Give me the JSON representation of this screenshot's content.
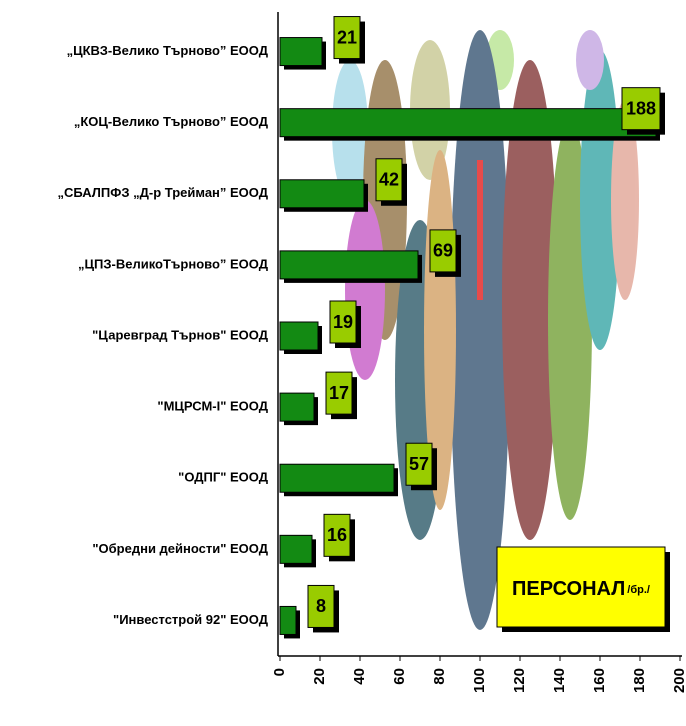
{
  "chart_data": {
    "type": "bar",
    "orientation": "horizontal",
    "title": "ПЕРСОНАЛ",
    "subtitle": "/бр./",
    "categories": [
      "„ЦКВЗ-Велико Търново” ЕООД",
      "„КОЦ-Велико Търново” ЕООД",
      "„СБАЛПФЗ „Д-р Трейман” ЕООД",
      "„ЦПЗ-ВеликоТърново” ЕООД",
      "\"Царевград Търнов\" ЕООД",
      "\"МЦРСМ-I\" ЕООД",
      "\"ОДПГ\" ЕООД",
      "\"Обредни дейности\" ЕООД",
      "\"Инвестстрой 92\" ЕООД"
    ],
    "values": [
      21,
      188,
      42,
      69,
      19,
      17,
      57,
      16,
      8
    ],
    "color": "#138a13",
    "label_color": "#99cc00",
    "title_box_color": "#ffff00",
    "xlim": [
      0,
      200
    ],
    "xticks": [
      0,
      20,
      40,
      60,
      80,
      100,
      120,
      140,
      160,
      180,
      200
    ]
  }
}
